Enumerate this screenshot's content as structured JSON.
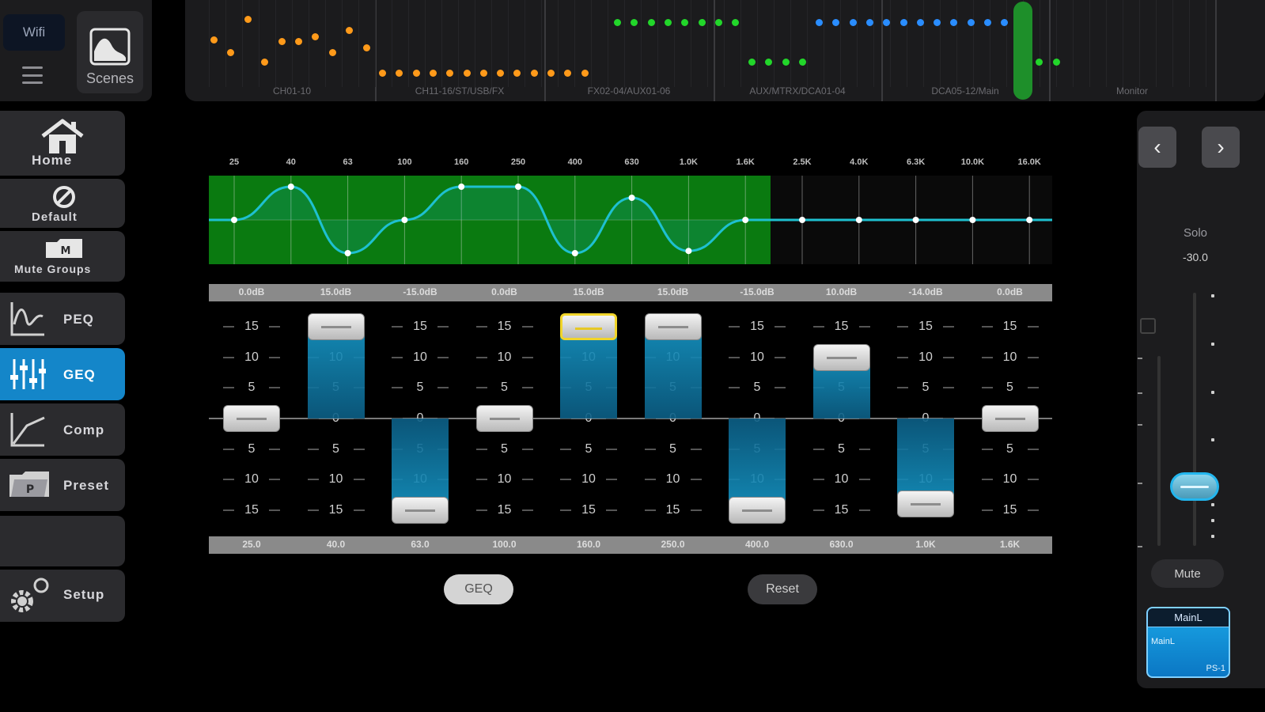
{
  "top": {
    "wifi_label": "Wifi",
    "scenes_label": "Scenes"
  },
  "meter_groups": [
    {
      "label": "CH01-10"
    },
    {
      "label": "CH11-16/ST/USB/FX"
    },
    {
      "label": "FX02-04/AUX01-06"
    },
    {
      "label": "AUX/MTRX/DCA01-04"
    },
    {
      "label": "DCA05-12/Main"
    },
    {
      "label": "Monitor"
    }
  ],
  "nav": {
    "home": "Home",
    "default": "Default",
    "mute_groups": "Mute Groups",
    "peq": "PEQ",
    "geq": "GEQ",
    "comp": "Comp",
    "preset": "Preset",
    "setup": "Setup"
  },
  "geq": {
    "graph_freqs": [
      "25",
      "40",
      "63",
      "100",
      "160",
      "250",
      "400",
      "630",
      "1.0K",
      "1.6K",
      "2.5K",
      "4.0K",
      "6.3K",
      "10.0K",
      "16.0K"
    ],
    "band_values": [
      "0.0dB",
      "15.0dB",
      "-15.0dB",
      "0.0dB",
      "15.0dB",
      "15.0dB",
      "-15.0dB",
      "10.0dB",
      "-14.0dB",
      "0.0dB"
    ],
    "band_gains": [
      0,
      15,
      -15,
      0,
      15,
      15,
      -15,
      10,
      -14,
      0
    ],
    "band_freqs": [
      "25.0",
      "40.0",
      "63.0",
      "100.0",
      "160.0",
      "250.0",
      "400.0",
      "630.0",
      "1.0K",
      "1.6K"
    ],
    "scale": [
      "15",
      "10",
      "5",
      "0",
      "5",
      "10",
      "15"
    ],
    "selected_band": 4,
    "geq_button": "GEQ",
    "reset_button": "Reset"
  },
  "right": {
    "solo_label": "Solo",
    "solo_value": "-30.0",
    "mute_label": "Mute",
    "channel_name": "MainL",
    "channel_sub": "MainL",
    "channel_corner": "PS-1"
  },
  "colors": {
    "accent": "#1486c9",
    "graph_green": "#0a7a10",
    "meter_orange": "#ff9a1a",
    "meter_green": "#22d62a",
    "meter_blue": "#2a8dff"
  }
}
